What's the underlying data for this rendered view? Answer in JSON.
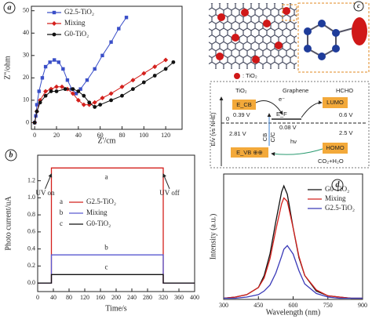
{
  "chart_data": [
    {
      "type": "line",
      "panel_label": "a",
      "x_label": "Z'/cm",
      "y_label": "Z''/ohm",
      "xlim": [
        -3,
        135
      ],
      "ylim": [
        -3,
        52
      ],
      "xticks": [
        0,
        20,
        40,
        60,
        80,
        100,
        120
      ],
      "yticks": [
        0,
        10,
        20,
        30,
        40,
        50
      ],
      "series": [
        {
          "name": "G2.5-TiO₂",
          "color": "#3a4fc8",
          "marker": "square",
          "x": [
            0,
            1,
            2,
            4,
            7,
            10,
            14,
            18,
            22,
            26,
            30,
            34,
            38,
            42,
            48,
            55,
            62,
            70,
            77,
            84
          ],
          "values": [
            0,
            3,
            8,
            14,
            20,
            25,
            27,
            28,
            27,
            24,
            19,
            15,
            13,
            15,
            19,
            24,
            30,
            36,
            42,
            47
          ]
        },
        {
          "name": "Mixing",
          "color": "#d4201c",
          "marker": "diamond",
          "x": [
            0,
            2,
            5,
            10,
            15,
            20,
            25,
            30,
            35,
            40,
            45,
            50,
            55,
            62,
            70,
            80,
            90,
            100,
            110,
            120
          ],
          "values": [
            0,
            5,
            10,
            14,
            15,
            16,
            16,
            15,
            13,
            10,
            8,
            8,
            9,
            11,
            13,
            16,
            19,
            22,
            25,
            28
          ]
        },
        {
          "name": "G0-TiO₂",
          "color": "#111111",
          "marker": "circle",
          "x": [
            0,
            2,
            5,
            10,
            15,
            20,
            28,
            35,
            40,
            45,
            50,
            55,
            60,
            70,
            80,
            90,
            100,
            110,
            120,
            127
          ],
          "values": [
            0,
            5,
            9,
            12,
            14,
            14,
            15,
            15,
            14,
            12,
            9,
            7,
            8,
            10,
            12,
            15,
            18,
            21,
            24,
            27
          ]
        }
      ]
    },
    {
      "type": "line",
      "panel_label": "b",
      "x_label": "Time/s",
      "y_label": "Photo current/uA",
      "xlim": [
        0,
        400
      ],
      "ylim": [
        -0.1,
        1.5
      ],
      "xticks": [
        0,
        40,
        80,
        120,
        160,
        200,
        240,
        280,
        320,
        360,
        400
      ],
      "yticks": [
        {
          "value": 0,
          "label": "0.0"
        },
        0.2,
        0.4,
        0.6,
        0.8,
        {
          "value": 1,
          "label": "1.0"
        },
        1.2
      ],
      "annotations": [
        "UV on",
        "UV off"
      ],
      "x": [
        0,
        35,
        35,
        320,
        320,
        400
      ],
      "series": [
        {
          "tag": "a",
          "name": "G2.5-TiO₂",
          "color": "#d4201c",
          "values": [
            0,
            0,
            1.35,
            1.35,
            0,
            0
          ]
        },
        {
          "tag": "b",
          "name": "Mixing",
          "color": "#5a5ad0",
          "values": [
            0,
            0,
            0.33,
            0.33,
            0,
            0
          ]
        },
        {
          "tag": "c",
          "name": "G0-TiO₂",
          "color": "#111111",
          "values": [
            0,
            0,
            0.1,
            0.1,
            0,
            0
          ]
        }
      ]
    },
    {
      "type": "line",
      "panel_label": "d",
      "x_label": "Wavelength (nm)",
      "y_label": "Intensity (a.u.)",
      "xlim": [
        300,
        900
      ],
      "ylim": [
        0,
        1.05
      ],
      "xticks": [
        300,
        450,
        600,
        750,
        900
      ],
      "x": [
        300,
        350,
        400,
        450,
        475,
        500,
        525,
        550,
        560,
        575,
        600,
        625,
        650,
        700,
        750,
        800,
        850,
        900
      ],
      "series": [
        {
          "name": "G0-TiO₂",
          "color": "#111111",
          "values": [
            0.01,
            0.02,
            0.04,
            0.1,
            0.2,
            0.38,
            0.65,
            0.9,
            0.95,
            0.88,
            0.6,
            0.35,
            0.2,
            0.07,
            0.03,
            0.02,
            0.01,
            0.01
          ]
        },
        {
          "name": "Mixing",
          "color": "#d4201c",
          "values": [
            0.01,
            0.02,
            0.04,
            0.1,
            0.18,
            0.34,
            0.58,
            0.8,
            0.85,
            0.82,
            0.6,
            0.36,
            0.2,
            0.08,
            0.03,
            0.02,
            0.01,
            0.01
          ]
        },
        {
          "name": "G2.5-TiO₂",
          "color": "#3a3ab8",
          "values": [
            0.01,
            0.01,
            0.02,
            0.04,
            0.07,
            0.12,
            0.22,
            0.36,
            0.42,
            0.45,
            0.38,
            0.24,
            0.13,
            0.05,
            0.02,
            0.01,
            0.01,
            0.01
          ]
        }
      ]
    }
  ],
  "diagram": {
    "panel_label": "c",
    "legend": ": TiO₂",
    "tio2": "TiO₂",
    "graphene": "Graphene",
    "hcho": "HCHO",
    "ecb": "E_CB",
    "lumo": "LUMO",
    "v039": "0.39 V",
    "electron": "e⁻",
    "ef": "E_F",
    "v008": "0.08 V",
    "v06": "0.6 V",
    "v281": "2.81 V",
    "cb": "CB",
    "cc": "C/C",
    "v25": "2.5 V",
    "hv": "hν",
    "evb": "E_VB ⊕⊕",
    "homo": "HOMO",
    "products": "CO₂+H₂O",
    "axis": "E/v (vs NHE)",
    "zero": "0"
  }
}
